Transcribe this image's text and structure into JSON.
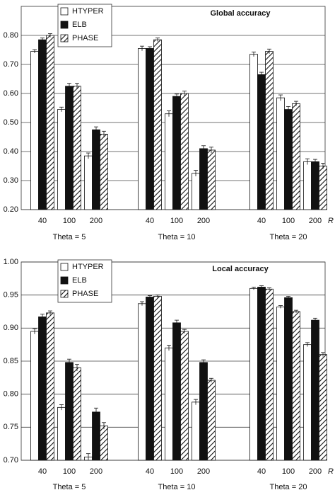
{
  "chart_data": [
    {
      "type": "grouped-bar",
      "title": "Global accuracy",
      "x_label": "R",
      "categories": [
        "40",
        "100",
        "200",
        "40",
        "100",
        "200",
        "40",
        "100",
        "200"
      ],
      "groups": [
        "Theta = 5",
        "Theta = 10",
        "Theta = 20"
      ],
      "series": [
        {
          "name": "HTYPER",
          "color": "#ffffff",
          "values": [
            0.745,
            0.545,
            0.385,
            0.755,
            0.53,
            0.325,
            0.735,
            0.585,
            0.365
          ],
          "errors": [
            0.006,
            0.008,
            0.01,
            0.008,
            0.01,
            0.01,
            0.008,
            0.01,
            0.01
          ]
        },
        {
          "name": "ELB",
          "color": "#111111",
          "values": [
            0.785,
            0.625,
            0.475,
            0.755,
            0.59,
            0.41,
            0.665,
            0.545,
            0.365
          ],
          "errors": [
            0.006,
            0.01,
            0.01,
            0.006,
            0.008,
            0.01,
            0.008,
            0.01,
            0.008
          ]
        },
        {
          "name": "PHASE",
          "color": "#111111",
          "pattern": "hatch",
          "values": [
            0.8,
            0.625,
            0.46,
            0.785,
            0.6,
            0.405,
            0.745,
            0.565,
            0.35
          ],
          "errors": [
            0.006,
            0.01,
            0.01,
            0.006,
            0.008,
            0.01,
            0.008,
            0.008,
            0.01
          ]
        }
      ],
      "ylim": [
        0.2,
        0.9
      ],
      "yticks": [
        {
          "value": 0.2,
          "label": "0.20"
        },
        {
          "value": 0.3,
          "label": "0.30"
        },
        {
          "value": 0.4,
          "label": "0.40"
        },
        {
          "value": 0.5,
          "label": "0.50"
        },
        {
          "value": 0.6,
          "label": "0.60"
        },
        {
          "value": 0.7,
          "label": "0.70"
        },
        {
          "value": 0.8,
          "label": "0.80"
        }
      ],
      "grid": true,
      "legend": "upper left"
    },
    {
      "type": "grouped-bar",
      "title": "Local accuracy",
      "x_label": "R",
      "categories": [
        "40",
        "100",
        "200",
        "40",
        "100",
        "200",
        "40",
        "100",
        "200"
      ],
      "groups": [
        "Theta = 5",
        "Theta = 10",
        "Theta = 20"
      ],
      "series": [
        {
          "name": "HTYPER",
          "color": "#ffffff",
          "values": [
            0.895,
            0.78,
            0.705,
            0.937,
            0.87,
            0.788,
            0.96,
            0.932,
            0.875
          ],
          "errors": [
            0.004,
            0.004,
            0.005,
            0.003,
            0.004,
            0.004,
            0.002,
            0.002,
            0.003
          ]
        },
        {
          "name": "ELB",
          "color": "#111111",
          "values": [
            0.917,
            0.848,
            0.773,
            0.947,
            0.908,
            0.848,
            0.962,
            0.946,
            0.912
          ],
          "errors": [
            0.004,
            0.005,
            0.006,
            0.002,
            0.004,
            0.004,
            0.002,
            0.002,
            0.003
          ]
        },
        {
          "name": "PHASE",
          "color": "#111111",
          "pattern": "hatch",
          "values": [
            0.923,
            0.84,
            0.752,
            0.948,
            0.895,
            0.821,
            0.959,
            0.925,
            0.86
          ],
          "errors": [
            0.003,
            0.005,
            0.005,
            0.002,
            0.003,
            0.003,
            0.002,
            0.002,
            0.003
          ]
        }
      ],
      "ylim": [
        0.7,
        1.0
      ],
      "yticks": [
        {
          "value": 0.7,
          "label": "0.70"
        },
        {
          "value": 0.75,
          "label": "0.75"
        },
        {
          "value": 0.8,
          "label": "0.80"
        },
        {
          "value": 0.85,
          "label": "0.85"
        },
        {
          "value": 0.9,
          "label": "0.90"
        },
        {
          "value": 0.95,
          "label": "0.95"
        },
        {
          "value": 1.0,
          "label": "1.00"
        }
      ],
      "grid": true,
      "legend": "upper left"
    }
  ]
}
